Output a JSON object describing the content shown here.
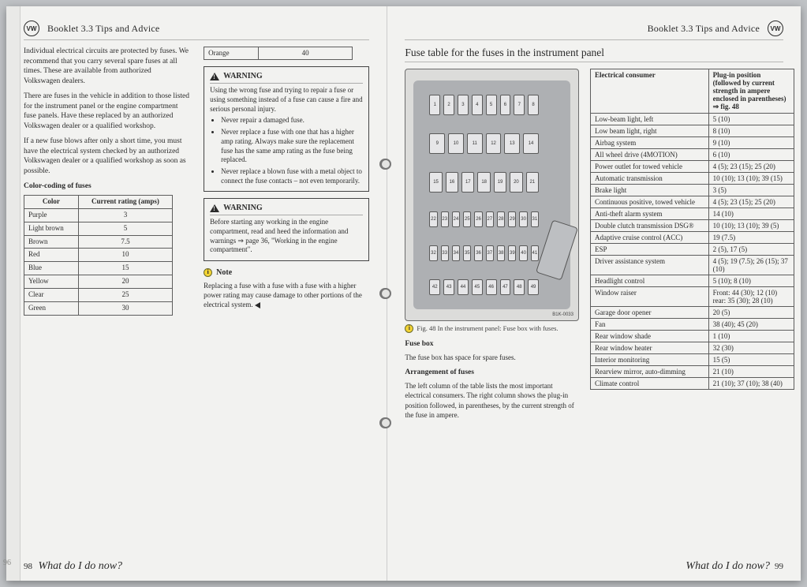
{
  "booklet": "Booklet 3.3  Tips and Advice",
  "footer_question": "What do I do now?",
  "left": {
    "pagenum": "98",
    "underlying_pagenum": "96",
    "paras": [
      "Individual electrical circuits are protected by fuses. We recommend that you carry several spare fuses at all times. These are available from authorized Volkswagen dealers.",
      "There are fuses in the vehicle in addition to those listed for the instrument panel or the engine compartment fuse panels. Have these replaced by an authorized Volkswagen dealer or a qualified workshop.",
      "If a new fuse blows after only a short time, you must have the electrical system checked by an authorized Volkswagen dealer or a qualified workshop as soon as possible."
    ],
    "color_head": "Color-coding of fuses",
    "color_table": {
      "headers": [
        "Color",
        "Current rating (amps)"
      ],
      "rows": [
        [
          "Purple",
          "3"
        ],
        [
          "Light brown",
          "5"
        ],
        [
          "Brown",
          "7.5"
        ],
        [
          "Red",
          "10"
        ],
        [
          "Blue",
          "15"
        ],
        [
          "Yellow",
          "20"
        ],
        [
          "Clear",
          "25"
        ],
        [
          "Green",
          "30"
        ],
        [
          "Orange",
          "40"
        ]
      ]
    },
    "warning1": {
      "title": "WARNING",
      "lead": "Using the wrong fuse and trying to repair a fuse or using something instead of a fuse can cause a fire and serious personal injury.",
      "bullets": [
        "Never repair a damaged fuse.",
        "Never replace a fuse with one that has a higher amp rating. Always make sure the replacement fuse has the same amp rating as the fuse being replaced.",
        "Never replace a blown fuse with a metal object to connect the fuse contacts – not even temporarily."
      ]
    },
    "warning2": {
      "title": "WARNING",
      "body": "Before starting any working in the engine compartment, read and heed the information and warnings ⇒ page 36, \"Working in the engine compartment\"."
    },
    "note": {
      "title": "Note",
      "body": "Replacing a fuse with a fuse with a fuse with a higher power rating may cause damage to other portions of the electrical system."
    }
  },
  "right": {
    "pagenum": "99",
    "section_title": "Fuse table for the fuses in the instrument panel",
    "fig_ref": "B1K-0033",
    "fig_caption": "Fig. 48   In the instrument panel: Fuse box with fuses.",
    "sub1": "Fuse box",
    "sub1_body": "The fuse box has space for spare fuses.",
    "sub2": "Arrangement of fuses",
    "sub2_body": "The left column of the table lists the most important electrical consumers. The right column shows the plug-in position followed, in parentheses, by the current strength of the fuse in ampere.",
    "fuse_table": {
      "headers": [
        "Electrical consumer",
        "Plug-in position (followed by current strength in ampere enclosed in parentheses) ⇒ fig. 48"
      ],
      "rows": [
        [
          "Low-beam light, left",
          "5 (10)"
        ],
        [
          "Low beam light, right",
          "8 (10)"
        ],
        [
          "Airbag system",
          "9 (10)"
        ],
        [
          "All wheel drive (4MOTION)",
          "6 (10)"
        ],
        [
          "Power outlet for towed vehicle",
          "4 (5); 23 (15); 25 (20)"
        ],
        [
          "Automatic transmission",
          "10 (10); 13 (10); 39 (15)"
        ],
        [
          "Brake light",
          "3 (5)"
        ],
        [
          "Continuous positive, towed vehicle",
          "4 (5); 23 (15); 25 (20)"
        ],
        [
          "Anti-theft alarm system",
          "14 (10)"
        ],
        [
          "Double clutch transmission DSG®",
          "10 (10); 13 (10); 39 (5)"
        ],
        [
          "Adaptive cruise control (ACC)",
          "19 (7.5)"
        ],
        [
          "ESP",
          "2 (5), 17 (5)"
        ],
        [
          "Driver assistance system",
          "4 (5); 19 (7.5); 26 (15); 37 (10)"
        ],
        [
          "Headlight control",
          "5 (10); 8 (10)"
        ],
        [
          "Window raiser",
          "Front: 44 (30); 12 (10)  rear: 35 (30); 28 (10)"
        ],
        [
          "Garage door opener",
          "20 (5)"
        ],
        [
          "Fan",
          "38 (40); 45 (20)"
        ],
        [
          "Rear window shade",
          "1 (10)"
        ],
        [
          "Rear window heater",
          "32 (30)"
        ],
        [
          "Interior monitoring",
          "15 (5)"
        ],
        [
          "Rearview mirror, auto-dimming",
          "21 (10)"
        ],
        [
          "Climate control",
          "21 (10); 37 (10); 38 (40)"
        ]
      ]
    },
    "fuse_numbers": {
      "row1": [
        1,
        2,
        3,
        4,
        5,
        6,
        7,
        8
      ],
      "row2": [
        9,
        10,
        11,
        12,
        13,
        14
      ],
      "row3": [
        15,
        16,
        17,
        18,
        19,
        20,
        21
      ],
      "row4": [
        22,
        23,
        24,
        25,
        26,
        27,
        28,
        29,
        30,
        31
      ],
      "row5": [
        32,
        33,
        34,
        35,
        36,
        37,
        38,
        39,
        40,
        41
      ],
      "row6": [
        42,
        43,
        44,
        45,
        46,
        47,
        48,
        49
      ]
    }
  }
}
